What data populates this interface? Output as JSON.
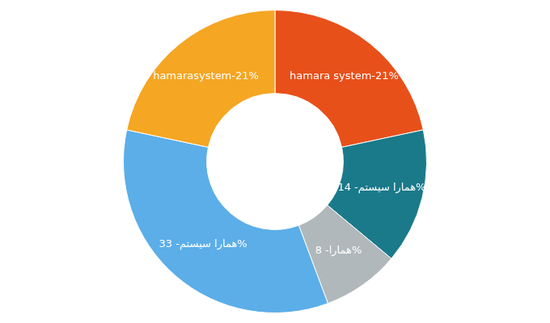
{
  "chart_data": {
    "type": "doughnut",
    "categories": [
      "hamara system-21%",
      "همارا سیستم- 14%",
      "همارا- 8%",
      "همارا سیستم- 33%",
      "hamarasystem-21%"
    ],
    "values": [
      21,
      14,
      8,
      33,
      21
    ],
    "colors": [
      "#E8501A",
      "#1A7A8A",
      "#B0B8BC",
      "#5BAEE8",
      "#F5A623"
    ]
  }
}
